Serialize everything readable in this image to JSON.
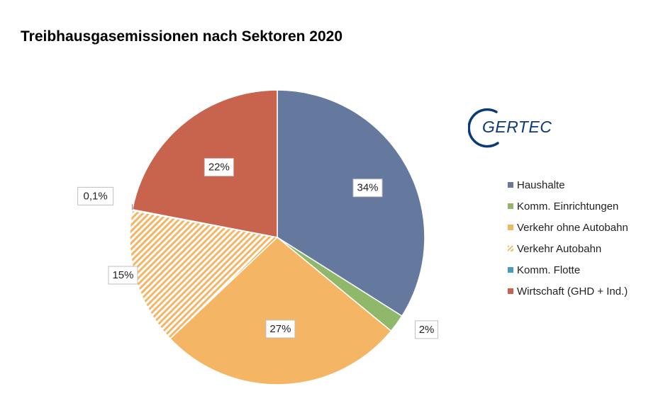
{
  "chart_data": {
    "type": "pie",
    "title": "Treibhausgasemissionen nach Sektoren 2020",
    "legend_position": "right",
    "slices": [
      {
        "name": "Haushalte",
        "value": 34,
        "label": "34%",
        "color": "#65799f",
        "pattern": "solid"
      },
      {
        "name": "Komm. Einrichtungen",
        "value": 2,
        "label": "2%",
        "color": "#8fb86a",
        "pattern": "solid"
      },
      {
        "name": "Verkehr ohne Autobahn",
        "value": 27,
        "label": "27%",
        "color": "#f4b565",
        "pattern": "solid"
      },
      {
        "name": "Verkehr Autobahn",
        "value": 15,
        "label": "15%",
        "color": "#f4b565",
        "pattern": "hatched"
      },
      {
        "name": "Komm. Flotte",
        "value": 0.1,
        "label": "0,1%",
        "color": "#4a9bb9",
        "pattern": "solid"
      },
      {
        "name": "Wirtschaft (GHD + Ind.)",
        "value": 22,
        "label": "22%",
        "color": "#c8634d",
        "pattern": "solid"
      }
    ]
  },
  "logo": {
    "text": "GERTEC",
    "color": "#0a3a7a"
  }
}
